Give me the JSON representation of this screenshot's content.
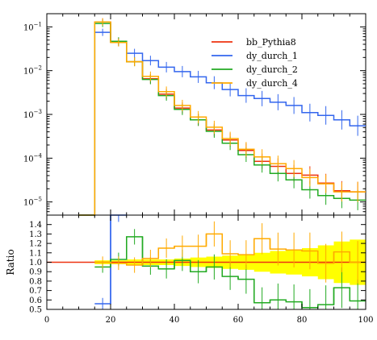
{
  "chart_data": {
    "type": "line",
    "main": {
      "yscale": "log",
      "xlim": [
        0,
        100
      ],
      "ylim": [
        5e-06,
        0.2
      ],
      "ytick_labels": [
        {
          "value": 0.1,
          "base": "10",
          "exp": "−1"
        },
        {
          "value": 0.01,
          "base": "10",
          "exp": "−2"
        },
        {
          "value": 0.001,
          "base": "10",
          "exp": "−3"
        },
        {
          "value": 0.0001,
          "base": "10",
          "exp": "−4"
        },
        {
          "value": 1e-05,
          "base": "10",
          "exp": "−5"
        }
      ],
      "legend_position": "top-right",
      "series": [
        {
          "name": "bb_Pythia8",
          "color": "#ee3311",
          "values": [
            5e-06,
            0.13,
            0.045,
            0.016,
            0.0065,
            0.0029,
            0.0014,
            0.00075,
            0.00044,
            0.00026,
            0.00015,
            8.5e-05,
            6.5e-05,
            4.5e-05,
            4.1e-05,
            2.7e-05,
            1.8e-05,
            1.7e-05
          ]
        },
        {
          "name": "dy_durch_1",
          "color": "#3366ee",
          "values": [
            5e-06,
            0.075,
            0.045,
            0.025,
            0.017,
            0.012,
            0.0095,
            0.0072,
            0.0053,
            0.0037,
            0.0027,
            0.0023,
            0.0019,
            0.0016,
            0.0011,
            0.00095,
            0.00075,
            0.00055
          ]
        },
        {
          "name": "dy_durch_2",
          "color": "#22aa22",
          "values": [
            5e-06,
            0.12,
            0.047,
            0.016,
            0.0063,
            0.0027,
            0.0013,
            0.00075,
            0.00041,
            0.00022,
            0.00012,
            7e-05,
            4.5e-05,
            3.2e-05,
            1.9e-05,
            1.4e-05,
            1.2e-05,
            1.1e-05
          ]
        },
        {
          "name": "dy_durch_4",
          "color": "#ffaa00",
          "values": [
            5e-06,
            0.13,
            0.044,
            0.016,
            0.0074,
            0.0033,
            0.0016,
            0.00087,
            0.00051,
            0.00028,
            0.00016,
            0.000107,
            7.5e-05,
            5.8e-05,
            3.6e-05,
            2.6e-05,
            1.7e-05,
            1.7e-05
          ]
        }
      ]
    },
    "ratio": {
      "ylabel": "Ratio",
      "xlim": [
        0,
        100
      ],
      "ylim": [
        0.5,
        1.5
      ],
      "ytick_labels": [
        "0.5",
        "0.6",
        "0.7",
        "0.8",
        "0.9",
        "1.0",
        "1.1",
        "1.2",
        "1.3",
        "1.4"
      ],
      "xtick_labels": [
        "0",
        "20",
        "40",
        "60",
        "80",
        "100"
      ],
      "band_color": "#ffff00",
      "band_halfwidth": [
        0,
        0.02,
        0.02,
        0.03,
        0.03,
        0.03,
        0.04,
        0.05,
        0.06,
        0.07,
        0.08,
        0.1,
        0.12,
        0.13,
        0.15,
        0.18,
        0.22,
        0.24
      ],
      "series": [
        {
          "name": "dy_durch_1",
          "color": "#3366ee",
          "values": [
            null,
            0.56,
            1.5,
            null,
            null,
            null,
            null,
            null,
            null,
            null,
            null,
            null,
            null,
            null,
            null,
            null,
            null,
            null
          ]
        },
        {
          "name": "dy_durch_2",
          "color": "#22aa22",
          "values": [
            null,
            0.95,
            1.03,
            1.27,
            0.96,
            0.93,
            1.02,
            0.9,
            0.95,
            0.85,
            0.82,
            0.57,
            0.6,
            0.58,
            0.52,
            0.55,
            0.73,
            0.59
          ]
        },
        {
          "name": "dy_durch_4",
          "color": "#ffaa00",
          "values": [
            null,
            1.0,
            0.99,
            0.97,
            1.04,
            1.15,
            1.17,
            1.17,
            1.3,
            1.09,
            1.08,
            1.25,
            1.14,
            1.13,
            1.12,
            0.99,
            1.11,
            1.0
          ]
        }
      ]
    },
    "bin_edges": [
      15,
      20,
      25,
      30,
      35,
      40,
      45,
      50,
      55,
      60,
      65,
      70,
      75,
      80,
      85,
      90,
      95,
      100
    ],
    "bin_starts": [
      10,
      15,
      20,
      25,
      30,
      35,
      40,
      45,
      50,
      55,
      60,
      65,
      70,
      75,
      80,
      85,
      90,
      95
    ]
  }
}
